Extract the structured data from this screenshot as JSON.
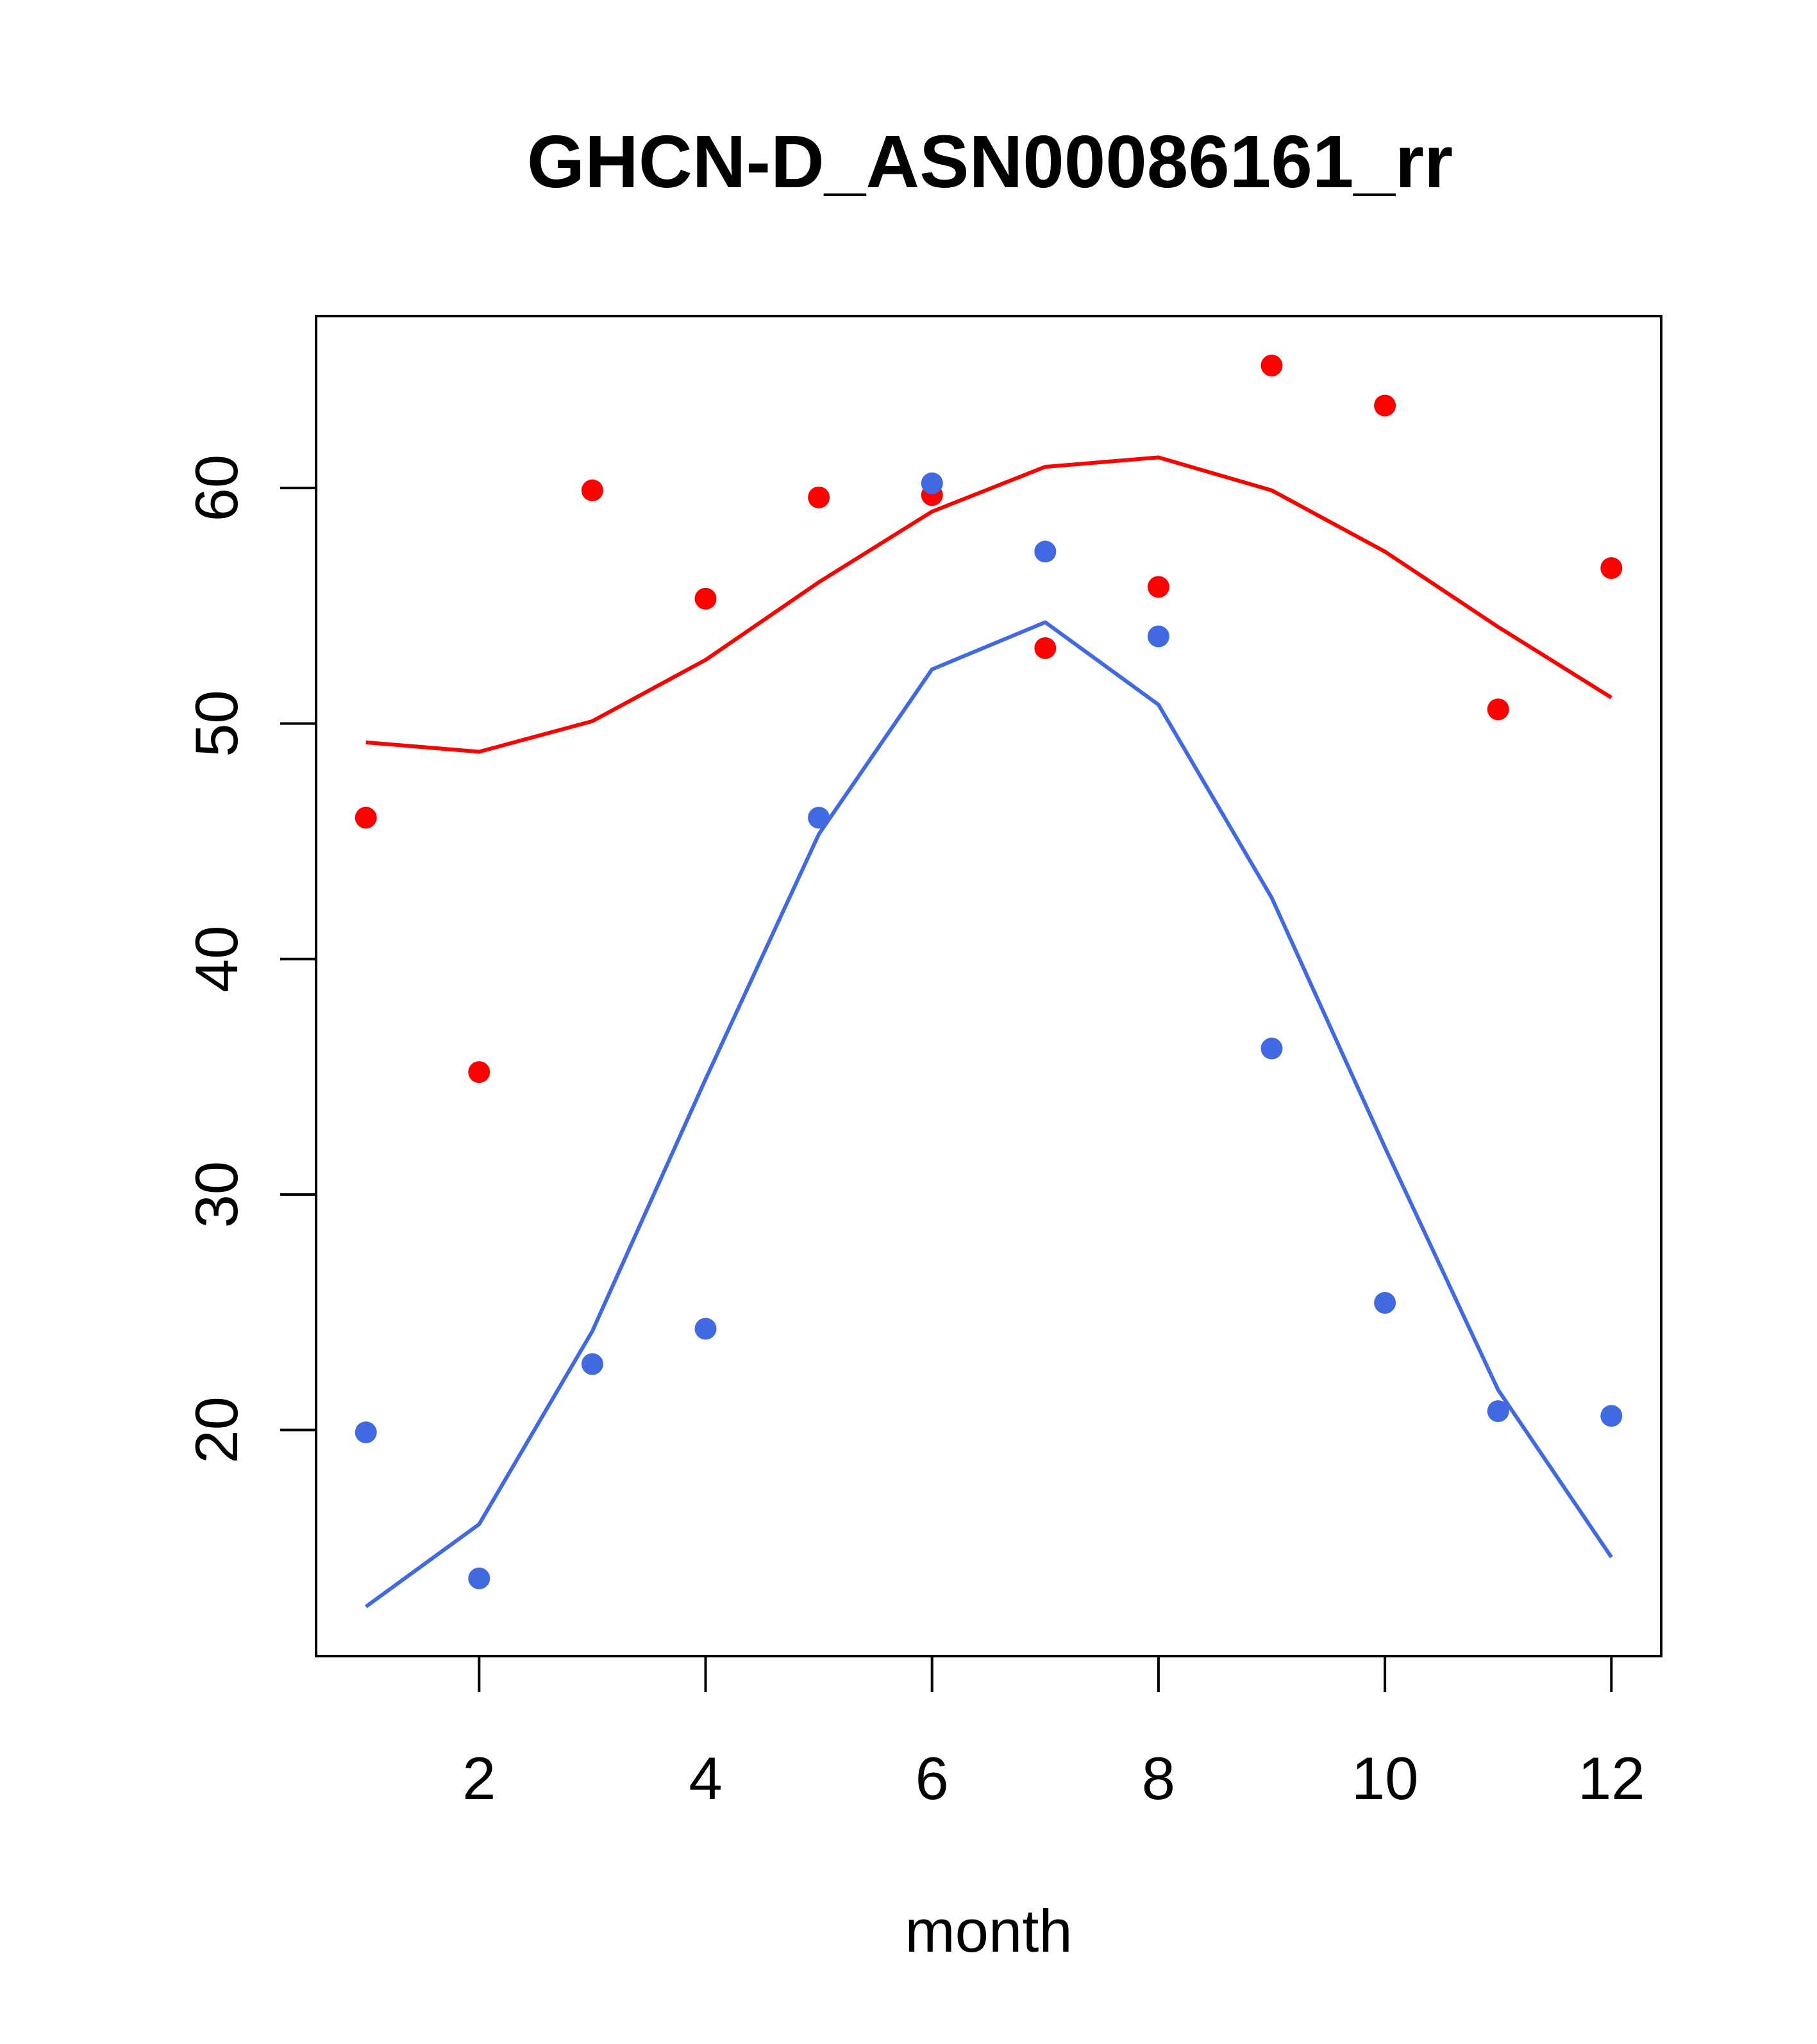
{
  "chart_data": {
    "type": "scatter",
    "title": "GHCN-D_ASN00086161_rr",
    "xlabel": "month",
    "ylabel": "",
    "xlim": [
      0.56,
      12.44
    ],
    "ylim": [
      10.4,
      67.3
    ],
    "x_ticks": [
      2,
      4,
      6,
      8,
      10,
      12
    ],
    "y_ticks": [
      20,
      30,
      40,
      50,
      60
    ],
    "grid": false,
    "x": [
      1,
      2,
      3,
      4,
      5,
      6,
      7,
      8,
      9,
      10,
      11,
      12
    ],
    "series": [
      {
        "name": "red points",
        "color": "#ff0000",
        "kind": "points",
        "values": [
          46.0,
          35.2,
          59.9,
          55.3,
          59.6,
          59.7,
          53.2,
          55.8,
          65.2,
          63.5,
          50.6,
          56.6
        ]
      },
      {
        "name": "red curve",
        "color": "#ff0000",
        "kind": "line",
        "values": [
          49.2,
          48.8,
          50.1,
          52.7,
          56.0,
          59.0,
          60.9,
          61.3,
          59.9,
          57.3,
          54.1,
          51.1
        ]
      },
      {
        "name": "blue points",
        "color": "#4169e1",
        "kind": "points",
        "values": [
          19.9,
          13.7,
          22.8,
          24.3,
          46.0,
          60.2,
          57.3,
          53.7,
          36.2,
          25.4,
          20.8,
          20.6
        ]
      },
      {
        "name": "blue curve",
        "color": "#4169e1",
        "kind": "line",
        "values": [
          12.5,
          16.0,
          24.2,
          34.9,
          45.3,
          52.3,
          54.3,
          50.8,
          42.6,
          32.0,
          21.7,
          14.6
        ]
      }
    ]
  }
}
